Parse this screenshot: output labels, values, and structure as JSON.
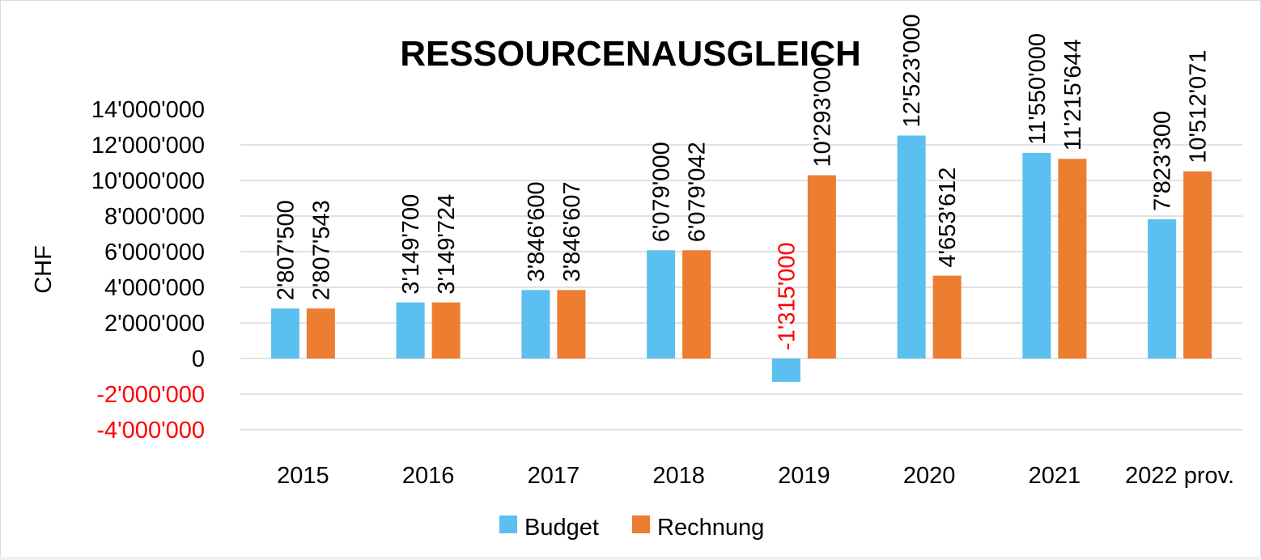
{
  "chart_data": {
    "type": "bar",
    "title": "RESSOURCENAUSGLEICH",
    "ylabel": "CHF",
    "xlabel": "",
    "categories": [
      "2015",
      "2016",
      "2017",
      "2018",
      "2019",
      "2020",
      "2021",
      "2022 prov."
    ],
    "series": [
      {
        "name": "Budget",
        "color": "#5BC0EF",
        "values": [
          2807500,
          3149700,
          3846600,
          6079000,
          -1315000,
          12523000,
          11550000,
          7823300
        ],
        "labels": [
          "2'807'500",
          "3'149'700",
          "3'846'600",
          "6'079'000",
          "-1'315'000",
          "12'523'000",
          "11'550'000",
          "7'823'300"
        ]
      },
      {
        "name": "Rechnung",
        "color": "#ED7D31",
        "values": [
          2807543,
          3149724,
          3846607,
          6079042,
          10293000,
          4653612,
          11215644,
          10512071
        ],
        "labels": [
          "2'807'543",
          "3'149'724",
          "3'846'607",
          "6'079'042",
          "10'293'000",
          "4'653'612",
          "11'215'644",
          "10'512'071"
        ]
      }
    ],
    "ylim": [
      -4000000,
      14000000
    ],
    "yticks": [
      14000000,
      12000000,
      10000000,
      8000000,
      6000000,
      4000000,
      2000000,
      0,
      -2000000,
      -4000000
    ],
    "ytick_labels": [
      "14'000'000",
      "12'000'000",
      "10'000'000",
      "8'000'000",
      "6'000'000",
      "4'000'000",
      "2'000'000",
      "0",
      "-2'000'000",
      "-4'000'000"
    ],
    "negative_color": "#FF0000",
    "text_color": "#000000",
    "grid": true,
    "legend_position": "bottom"
  }
}
